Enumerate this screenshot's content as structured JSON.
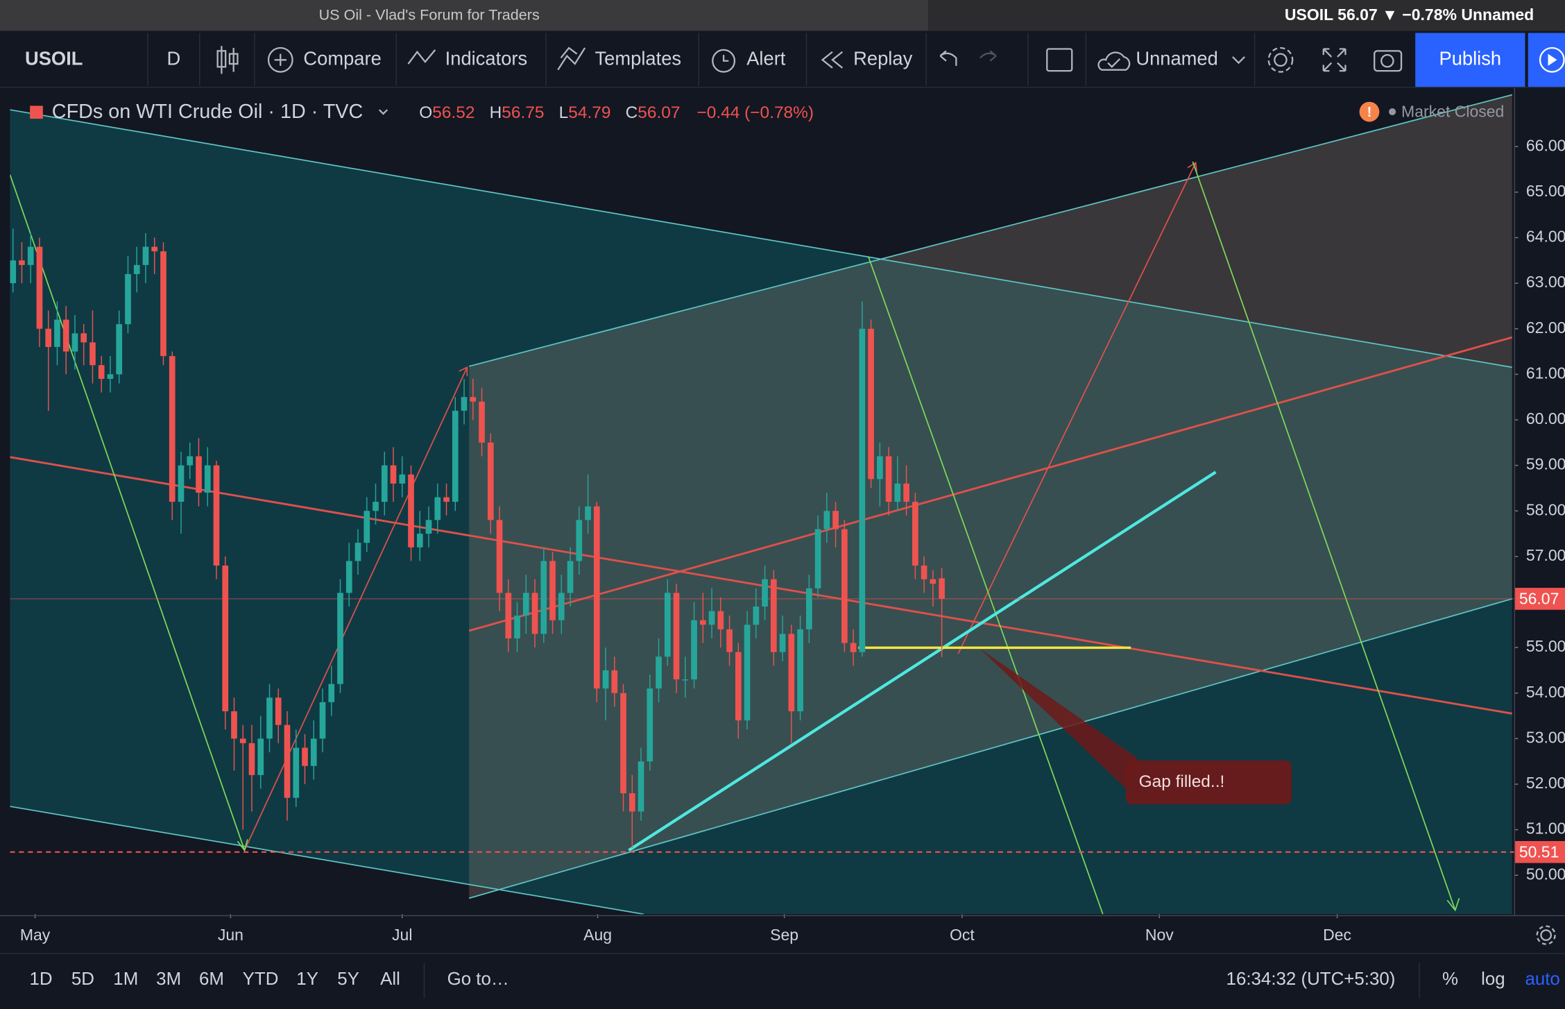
{
  "window": {
    "title": "US Oil - Vlad's Forum for Traders",
    "ticker": "USOIL 56.07 ▼ −0.78% Unnamed"
  },
  "toolbar": {
    "symbol": "USOIL",
    "interval": "D",
    "compare": "Compare",
    "indicators": "Indicators",
    "templates": "Templates",
    "alert": "Alert",
    "replay": "Replay",
    "layout": "Unnamed",
    "publish": "Publish"
  },
  "legend": {
    "symbol": "CFDs on WTI Crude Oil · 1D · TVC",
    "ohlc": [
      {
        "label": "O",
        "value": 56.52
      },
      {
        "label": "H",
        "value": 56.75
      },
      {
        "label": "L",
        "value": 54.79
      },
      {
        "label": "C",
        "value": 56.07
      }
    ],
    "change": "−0.44 (−0.78%)",
    "status": "Market Closed"
  },
  "chart_data": {
    "type": "candlestick",
    "up_color": "#26a69a",
    "down_color": "#ef5350",
    "open": [
      63.0,
      63.5,
      63.4,
      63.8,
      62.0,
      61.6,
      62.2,
      61.5,
      61.9,
      61.7,
      61.2,
      60.9,
      61.0,
      62.1,
      63.2,
      63.4,
      63.8,
      63.7,
      61.4,
      58.2,
      59.0,
      59.2,
      58.4,
      59.0,
      56.8,
      53.6,
      53.0,
      52.9,
      52.2,
      53.0,
      53.9,
      53.3,
      51.7,
      52.8,
      52.4,
      53.0,
      53.8,
      54.2,
      56.2,
      56.9,
      57.3,
      58.0,
      58.2,
      59.0,
      58.6,
      58.8,
      57.2,
      57.5,
      57.8,
      58.3,
      58.2,
      60.2,
      60.5,
      60.4,
      59.5,
      57.8,
      56.2,
      55.2,
      55.7,
      56.2,
      55.3,
      56.9,
      55.6,
      56.2,
      56.9,
      57.8,
      58.1,
      54.1,
      54.5,
      54.0,
      51.8,
      51.4,
      52.5,
      54.1,
      54.8,
      56.2,
      54.3,
      54.3,
      55.6,
      55.5,
      55.8,
      55.4,
      54.9,
      53.4,
      55.5,
      55.9,
      56.5,
      54.9,
      55.3,
      53.6,
      55.4,
      56.3,
      57.6,
      58.0,
      57.6,
      55.1,
      54.9,
      62.0,
      58.7,
      59.2,
      58.2,
      58.6,
      58.2,
      56.8,
      56.5,
      56.52
    ],
    "high": [
      64.2,
      63.9,
      64.1,
      64.0,
      62.4,
      62.6,
      62.5,
      62.3,
      62.1,
      62.4,
      61.4,
      61.4,
      62.4,
      63.6,
      63.8,
      64.1,
      64.0,
      63.9,
      61.5,
      59.3,
      59.5,
      59.6,
      59.4,
      59.1,
      57.0,
      53.9,
      53.3,
      53.3,
      53.5,
      54.2,
      54.1,
      53.6,
      53.2,
      53.1,
      53.4,
      54.1,
      54.6,
      56.5,
      57.3,
      57.6,
      58.3,
      58.6,
      59.3,
      59.4,
      59.2,
      59.0,
      58.0,
      58.1,
      58.6,
      58.6,
      60.5,
      60.9,
      60.9,
      60.7,
      59.7,
      58.1,
      56.5,
      56.0,
      56.6,
      56.5,
      57.2,
      57.1,
      56.6,
      57.2,
      58.1,
      58.8,
      58.2,
      55.0,
      54.8,
      54.2,
      52.2,
      52.8,
      54.4,
      55.2,
      56.5,
      56.4,
      54.8,
      56.0,
      56.2,
      56.3,
      56.1,
      55.7,
      55.1,
      55.8,
      56.3,
      56.8,
      56.7,
      55.7,
      55.5,
      55.7,
      56.6,
      57.9,
      58.4,
      58.2,
      57.8,
      55.4,
      62.6,
      62.2,
      59.5,
      59.4,
      59.2,
      59.0,
      58.4,
      57.0,
      56.7,
      56.75
    ],
    "low": [
      62.8,
      63.0,
      63.0,
      61.6,
      60.2,
      61.2,
      61.0,
      61.1,
      61.2,
      60.8,
      60.6,
      60.6,
      60.8,
      61.9,
      62.8,
      63.0,
      63.2,
      61.2,
      57.8,
      57.5,
      58.7,
      58.1,
      58.1,
      56.5,
      53.2,
      52.3,
      51.0,
      51.4,
      51.9,
      52.7,
      52.9,
      51.2,
      51.5,
      52.0,
      52.1,
      52.7,
      53.5,
      54.0,
      55.9,
      56.6,
      57.1,
      57.7,
      57.9,
      58.2,
      58.3,
      56.9,
      56.9,
      57.2,
      57.5,
      57.9,
      58.0,
      59.9,
      60.0,
      59.2,
      57.5,
      55.8,
      54.9,
      54.9,
      55.3,
      55.0,
      55.1,
      55.3,
      55.3,
      55.9,
      56.6,
      57.5,
      53.8,
      53.4,
      53.7,
      51.4,
      50.6,
      51.2,
      52.3,
      53.8,
      54.6,
      54.0,
      53.9,
      54.1,
      55.1,
      55.2,
      55.0,
      54.6,
      53.0,
      53.2,
      55.2,
      55.6,
      54.6,
      54.7,
      52.9,
      53.4,
      55.1,
      56.1,
      57.3,
      57.2,
      54.9,
      54.6,
      54.8,
      58.5,
      58.1,
      57.9,
      58.0,
      57.9,
      56.5,
      56.2,
      55.9,
      54.79
    ],
    "close": [
      63.5,
      63.4,
      63.8,
      62.0,
      61.6,
      62.2,
      61.5,
      61.9,
      61.7,
      61.2,
      60.9,
      61.0,
      62.1,
      63.2,
      63.4,
      63.8,
      63.7,
      61.4,
      58.2,
      59.0,
      59.2,
      58.4,
      59.0,
      56.8,
      53.6,
      53.0,
      52.9,
      52.2,
      53.0,
      53.9,
      53.3,
      51.7,
      52.8,
      52.4,
      53.0,
      53.8,
      54.2,
      56.2,
      56.9,
      57.3,
      58.0,
      58.2,
      59.0,
      58.6,
      58.8,
      57.2,
      57.5,
      57.8,
      58.3,
      58.2,
      60.2,
      60.5,
      60.4,
      59.5,
      57.8,
      56.2,
      55.2,
      55.7,
      56.2,
      55.3,
      56.9,
      55.6,
      56.2,
      56.9,
      57.8,
      58.1,
      54.1,
      54.5,
      54.0,
      51.8,
      51.4,
      52.5,
      54.1,
      54.8,
      56.2,
      54.3,
      54.3,
      55.6,
      55.5,
      55.8,
      55.4,
      54.9,
      53.4,
      55.5,
      55.9,
      56.5,
      54.9,
      55.3,
      53.6,
      55.4,
      56.3,
      57.6,
      58.0,
      57.6,
      55.1,
      54.9,
      62.0,
      58.7,
      59.2,
      58.2,
      58.6,
      58.2,
      56.8,
      56.5,
      56.4,
      56.07
    ],
    "xlim": [
      -0.339,
      169.7
    ],
    "xticks": [
      {
        "value": 2.5,
        "label": "May"
      },
      {
        "value": 24.6,
        "label": "Jun"
      },
      {
        "value": 44,
        "label": "Jul"
      },
      {
        "value": 66.1,
        "label": "Aug"
      },
      {
        "value": 87.2,
        "label": "Sep"
      },
      {
        "value": 107.3,
        "label": "Oct"
      },
      {
        "value": 129.6,
        "label": "Nov"
      },
      {
        "value": 149.7,
        "label": "Dec"
      }
    ],
    "ylim": [
      49.145,
      67.29
    ],
    "yticks": [
      {
        "value": 50,
        "label": "50.00"
      },
      {
        "value": 51,
        "label": "51.00"
      },
      {
        "value": 52,
        "label": "52.00"
      },
      {
        "value": 53,
        "label": "53.00"
      },
      {
        "value": 54,
        "label": "54.00"
      },
      {
        "value": 55,
        "label": "55.00"
      },
      {
        "value": 56,
        "label": "56.00"
      },
      {
        "value": 57,
        "label": "57.00"
      },
      {
        "value": 58,
        "label": "58.00"
      },
      {
        "value": 59,
        "label": "59.00"
      },
      {
        "value": 60,
        "label": "60.00"
      },
      {
        "value": 61,
        "label": "61.00"
      },
      {
        "value": 62,
        "label": "62.00"
      },
      {
        "value": 63,
        "label": "63.00"
      },
      {
        "value": 64,
        "label": "64.00"
      },
      {
        "value": 65,
        "label": "65.00"
      },
      {
        "value": 66,
        "label": "66.00"
      }
    ],
    "last_price": 56.07,
    "alert_price": 50.51,
    "annotation": "Gap filled..!"
  },
  "bottom_bar": {
    "ranges": [
      "1D",
      "5D",
      "1M",
      "3M",
      "6M",
      "YTD",
      "1Y",
      "5Y",
      "All"
    ],
    "goto": "Go to…",
    "clock": "16:34:32 (UTC+5:30)",
    "percent": "%",
    "log": "log",
    "auto": "auto"
  }
}
